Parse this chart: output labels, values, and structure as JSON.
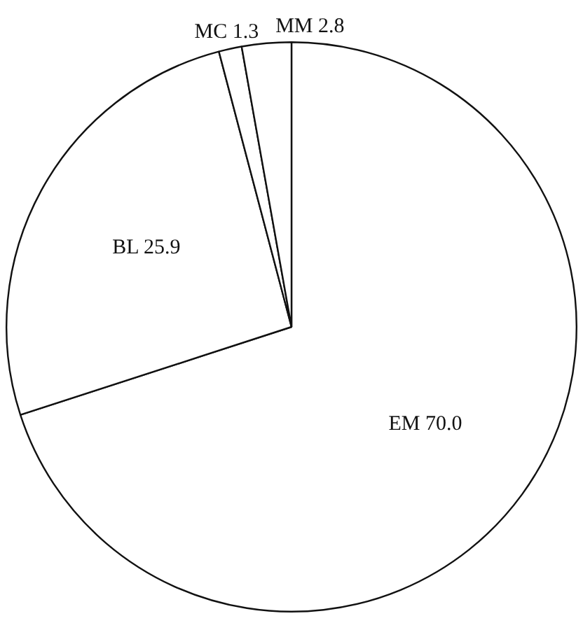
{
  "chart_data": {
    "type": "pie",
    "categories": [
      "EM",
      "BL",
      "MC",
      "MM"
    ],
    "values": [
      70.0,
      25.9,
      1.3,
      2.8
    ],
    "value_labels": [
      "70.0",
      "25.9",
      "1.3",
      "2.8"
    ],
    "colors": [
      "#ffffff",
      "#ffffff",
      "#ffffff",
      "#ffffff"
    ],
    "legend": false
  }
}
